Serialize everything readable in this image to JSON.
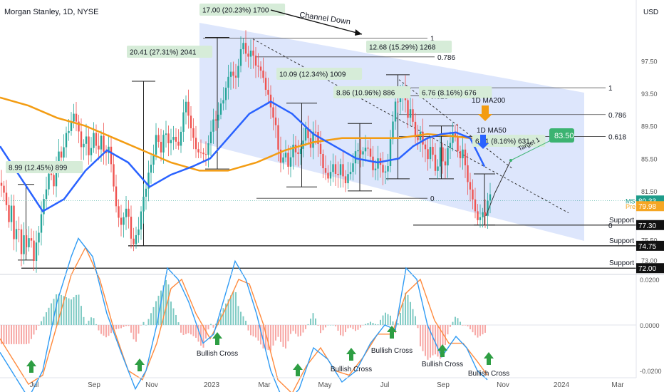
{
  "header": {
    "title": "Morgan Stanley, 1D, NYSE",
    "currency": "USD"
  },
  "colors": {
    "channel_fill": "#cfdcfb",
    "ma50": "#2962ff",
    "ma200": "#f39c12",
    "up": "#26a69a",
    "down": "#ef5350",
    "label_bg": "#d6ecd8",
    "target": "#3cb371",
    "last_bg": "#1e9c8a",
    "pre_bg": "#f5a623",
    "support_bg": "#111111"
  },
  "chart_data": [
    {
      "type": "candlestick",
      "title": "Morgan Stanley, 1D, NYSE",
      "ylim": [
        71.5,
        102
      ],
      "x_ticks": [
        "Jul",
        "Sep",
        "Nov",
        "2023",
        "Mar",
        "May",
        "Jul",
        "Sep",
        "Nov",
        "2024",
        "Mar"
      ],
      "y_ticks": [
        "97.50",
        "93.50",
        "89.50",
        "85.50",
        "81.50",
        "77.50",
        "75.50",
        "73.00"
      ],
      "price_path": [
        [
          0,
          82.5
        ],
        [
          6,
          81.5
        ],
        [
          12,
          77
        ],
        [
          16,
          79.5
        ],
        [
          20,
          74
        ],
        [
          25,
          78
        ],
        [
          30,
          73
        ],
        [
          34,
          76.5
        ],
        [
          38,
          74
        ],
        [
          43,
          77
        ],
        [
          47,
          73
        ],
        [
          52,
          76
        ],
        [
          58,
          79
        ],
        [
          64,
          82
        ],
        [
          70,
          84
        ],
        [
          76,
          82
        ],
        [
          82,
          86
        ],
        [
          88,
          85
        ],
        [
          94,
          89
        ],
        [
          98,
          88.5
        ],
        [
          104,
          91.5
        ],
        [
          110,
          89
        ],
        [
          116,
          87
        ],
        [
          120,
          89
        ],
        [
          126,
          86
        ],
        [
          132,
          89
        ],
        [
          138,
          86
        ],
        [
          142,
          88
        ],
        [
          148,
          85
        ],
        [
          154,
          87
        ],
        [
          158,
          82
        ],
        [
          164,
          79
        ],
        [
          170,
          77
        ],
        [
          176,
          80
        ],
        [
          182,
          78
        ],
        [
          186,
          75
        ],
        [
          190,
          76
        ],
        [
          196,
          78
        ],
        [
          202,
          81
        ],
        [
          208,
          83
        ],
        [
          214,
          85
        ],
        [
          220,
          88
        ],
        [
          226,
          86
        ],
        [
          232,
          89
        ],
        [
          238,
          87
        ],
        [
          244,
          89
        ],
        [
          250,
          87
        ],
        [
          256,
          91
        ],
        [
          262,
          93
        ],
        [
          268,
          89
        ],
        [
          274,
          87
        ],
        [
          280,
          85
        ],
        [
          284,
          86.5
        ],
        [
          288,
          84.5
        ],
        [
          294,
          88
        ],
        [
          300,
          90
        ],
        [
          306,
          91
        ],
        [
          312,
          93
        ],
        [
          318,
          95
        ],
        [
          324,
          97
        ],
        [
          330,
          95
        ],
        [
          336,
          98
        ],
        [
          342,
          99.5
        ],
        [
          348,
          97
        ],
        [
          354,
          99
        ],
        [
          358,
          96
        ],
        [
          364,
          97
        ],
        [
          370,
          95
        ],
        [
          376,
          94
        ],
        [
          380,
          92
        ],
        [
          386,
          91
        ],
        [
          390,
          87
        ],
        [
          396,
          85
        ],
        [
          400,
          86.5
        ],
        [
          406,
          84
        ],
        [
          412,
          87
        ],
        [
          418,
          85
        ],
        [
          424,
          87
        ],
        [
          430,
          89
        ],
        [
          436,
          87
        ],
        [
          442,
          90
        ],
        [
          448,
          87
        ],
        [
          454,
          85
        ],
        [
          460,
          83
        ],
        [
          466,
          85
        ],
        [
          472,
          83
        ],
        [
          478,
          84
        ],
        [
          484,
          82
        ],
        [
          490,
          83
        ],
        [
          496,
          85
        ],
        [
          502,
          87
        ],
        [
          508,
          86
        ],
        [
          514,
          88
        ],
        [
          520,
          86
        ],
        [
          526,
          84
        ],
        [
          532,
          86
        ],
        [
          538,
          83
        ],
        [
          544,
          84
        ],
        [
          548,
          87
        ],
        [
          552,
          90
        ],
        [
          556,
          93
        ],
        [
          560,
          91
        ],
        [
          564,
          95
        ],
        [
          568,
          93
        ],
        [
          572,
          91
        ],
        [
          576,
          92
        ],
        [
          580,
          90
        ],
        [
          586,
          88
        ],
        [
          590,
          89
        ],
        [
          596,
          87
        ],
        [
          600,
          85
        ],
        [
          604,
          87
        ],
        [
          608,
          85
        ],
        [
          612,
          83
        ],
        [
          618,
          86
        ],
        [
          624,
          84
        ],
        [
          630,
          87
        ],
        [
          636,
          89
        ],
        [
          640,
          88
        ],
        [
          646,
          86
        ],
        [
          650,
          87
        ],
        [
          654,
          85
        ],
        [
          658,
          81.5
        ],
        [
          662,
          82
        ],
        [
          666,
          79
        ],
        [
          670,
          77.5
        ],
        [
          676,
          78.5
        ],
        [
          680,
          77.3
        ],
        [
          684,
          80
        ],
        [
          688,
          80.3
        ]
      ],
      "series": [
        {
          "name": "1D MA50",
          "values": [
            [
              0,
              87
            ],
            [
              30,
              83
            ],
            [
              60,
              79
            ],
            [
              90,
              80.5
            ],
            [
              120,
              84
            ],
            [
              150,
              86.5
            ],
            [
              180,
              85
            ],
            [
              210,
              82
            ],
            [
              240,
              83.5
            ],
            [
              270,
              84.5
            ],
            [
              295,
              85.5
            ],
            [
              320,
              88
            ],
            [
              350,
              91
            ],
            [
              380,
              92.5
            ],
            [
              410,
              91
            ],
            [
              440,
              88.5
            ],
            [
              470,
              87
            ],
            [
              500,
              85.5
            ],
            [
              530,
              85
            ],
            [
              560,
              85.5
            ],
            [
              580,
              87
            ],
            [
              600,
              88
            ],
            [
              620,
              88.5
            ],
            [
              640,
              88.7
            ],
            [
              660,
              88
            ],
            [
              680,
              84.5
            ]
          ]
        },
        {
          "name": "1D MA200",
          "values": [
            [
              0,
              93
            ],
            [
              40,
              92
            ],
            [
              80,
              90.5
            ],
            [
              120,
              89.5
            ],
            [
              160,
              88
            ],
            [
              200,
              86.5
            ],
            [
              240,
              85
            ],
            [
              280,
              84
            ],
            [
              320,
              84
            ],
            [
              360,
              85
            ],
            [
              400,
              86.5
            ],
            [
              440,
              87.5
            ],
            [
              480,
              88
            ],
            [
              520,
              88
            ],
            [
              560,
              88
            ],
            [
              600,
              88.5
            ],
            [
              640,
              88.2
            ],
            [
              680,
              87.8
            ]
          ]
        }
      ],
      "annotations": [
        "8.99 (12.45%) 899",
        "20.41 (27.31%) 2041",
        "17.00 (20.23%) 1700",
        "10.09 (12.34%) 1009",
        "8.86 (10.96%) 886",
        "12.68 (15.29%) 1268",
        "6.76 (8.16%) 676",
        "6.31 (8.16%) 631",
        "Channel Down",
        "1D MA200",
        "1D MA50",
        "Target 1"
      ],
      "fib_levels": [
        {
          "label": "1",
          "value": 100.3
        },
        {
          "label": "0.786",
          "value": 98.0
        },
        {
          "label": "0.618",
          "value": 93.2
        },
        {
          "label": "0",
          "value": 80.6
        },
        {
          "label": "1",
          "value": 94.2
        },
        {
          "label": "0.786",
          "value": 90.9
        },
        {
          "label": "0.618",
          "value": 88.2
        },
        {
          "label": "0",
          "value": 77.3
        }
      ],
      "supports": [
        {
          "label": "Support 1",
          "value": "77.30"
        },
        {
          "label": "Support 2",
          "value": "74.75"
        },
        {
          "label": "Support 3",
          "value": "72.00"
        }
      ],
      "target": "83.50",
      "last_price": {
        "symbol": "MS",
        "value": "80.33"
      },
      "pre_price": {
        "symbol": "Pre",
        "value": "79.98"
      }
    },
    {
      "type": "macd",
      "ylim": [
        -0.04,
        0.045
      ],
      "y_ticks": [
        "0.0200",
        "0.0000",
        "-0.0200"
      ],
      "bullish_cross_label": "Bullish Cross",
      "macd_path": [
        [
          0,
          -0.012
        ],
        [
          20,
          -0.022
        ],
        [
          40,
          -0.032
        ],
        [
          60,
          -0.02
        ],
        [
          80,
          0.01
        ],
        [
          100,
          0.03
        ],
        [
          110,
          0.038
        ],
        [
          130,
          0.03
        ],
        [
          150,
          0.005
        ],
        [
          170,
          -0.012
        ],
        [
          190,
          -0.028
        ],
        [
          205,
          -0.02
        ],
        [
          220,
          0.0
        ],
        [
          235,
          0.025
        ],
        [
          250,
          0.02
        ],
        [
          265,
          0.01
        ],
        [
          285,
          -0.008
        ],
        [
          300,
          -0.004
        ],
        [
          315,
          0.012
        ],
        [
          330,
          0.028
        ],
        [
          345,
          0.02
        ],
        [
          360,
          0.005
        ],
        [
          380,
          -0.02
        ],
        [
          400,
          -0.035
        ],
        [
          420,
          -0.028
        ],
        [
          440,
          -0.01
        ],
        [
          460,
          -0.015
        ],
        [
          480,
          -0.025
        ],
        [
          500,
          -0.02
        ],
        [
          520,
          -0.008
        ],
        [
          540,
          0.0
        ],
        [
          555,
          -0.002
        ],
        [
          570,
          0.025
        ],
        [
          585,
          0.02
        ],
        [
          600,
          0.0
        ],
        [
          620,
          -0.014
        ],
        [
          640,
          -0.005
        ],
        [
          655,
          -0.01
        ],
        [
          670,
          -0.02
        ],
        [
          684,
          -0.024
        ]
      ],
      "signal_path": [
        [
          0,
          -0.006
        ],
        [
          20,
          -0.016
        ],
        [
          40,
          -0.026
        ],
        [
          60,
          -0.022
        ],
        [
          80,
          0.0
        ],
        [
          100,
          0.022
        ],
        [
          120,
          0.034
        ],
        [
          140,
          0.02
        ],
        [
          160,
          -0.002
        ],
        [
          180,
          -0.02
        ],
        [
          200,
          -0.024
        ],
        [
          220,
          -0.008
        ],
        [
          240,
          0.016
        ],
        [
          255,
          0.02
        ],
        [
          275,
          0.005
        ],
        [
          295,
          -0.006
        ],
        [
          315,
          0.006
        ],
        [
          335,
          0.02
        ],
        [
          350,
          0.018
        ],
        [
          370,
          0.0
        ],
        [
          390,
          -0.024
        ],
        [
          410,
          -0.03
        ],
        [
          430,
          -0.018
        ],
        [
          450,
          -0.01
        ],
        [
          470,
          -0.02
        ],
        [
          490,
          -0.022
        ],
        [
          510,
          -0.014
        ],
        [
          530,
          -0.004
        ],
        [
          550,
          -0.004
        ],
        [
          570,
          0.014
        ],
        [
          590,
          0.02
        ],
        [
          610,
          0.002
        ],
        [
          630,
          -0.008
        ],
        [
          650,
          -0.008
        ],
        [
          670,
          -0.016
        ],
        [
          684,
          -0.022
        ]
      ]
    }
  ]
}
